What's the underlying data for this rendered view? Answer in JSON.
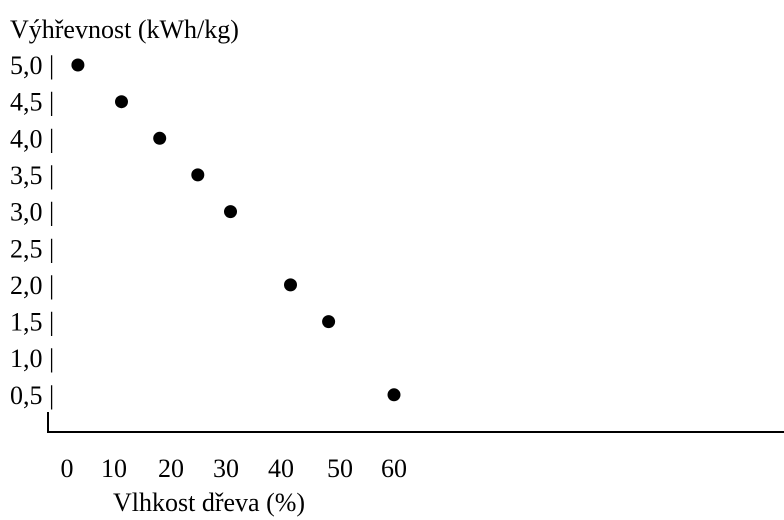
{
  "chart_data": {
    "type": "scatter",
    "ylabel": "Výhřevnost (kWh/kg)",
    "xlabel": "Vlhkost dřeva (%)",
    "x_ticks": [
      "0",
      "10",
      "20",
      "30",
      "40",
      "50",
      "60"
    ],
    "y_ticks": [
      "5,0 |",
      "4,5 |",
      "4,0 |",
      "3,5 |",
      "3,0 |",
      "2,5 |",
      "2,0 |",
      "1,5 |",
      "1,0 |",
      "0,5 |"
    ],
    "xlim": [
      0,
      60
    ],
    "ylim": [
      0.5,
      5.0
    ],
    "series": [
      {
        "x": [
          2,
          10,
          17,
          24,
          30,
          41,
          48,
          60
        ],
        "y": [
          5.0,
          4.5,
          4.0,
          3.5,
          3.0,
          2.0,
          1.5,
          0.5
        ]
      }
    ],
    "marker_color": "#000000",
    "grid": false
  }
}
